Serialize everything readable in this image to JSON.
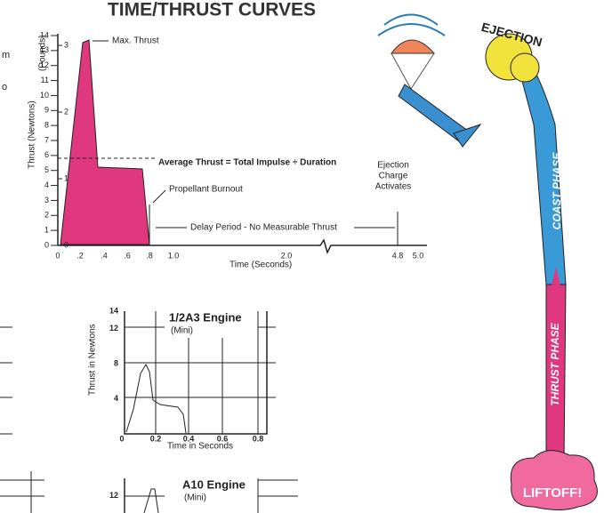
{
  "header": {
    "title": "TIME/THRUST CURVES"
  },
  "left_fragments": [
    "m",
    "o"
  ],
  "main_chart": {
    "y_label": "Thrust (Newtons)",
    "y2_label": "(Pounds)",
    "newton_ticks": [
      0,
      1,
      2,
      3,
      4,
      5,
      6,
      7,
      8,
      9,
      10,
      11,
      12,
      13,
      14
    ],
    "pound_ticks": [
      0,
      1,
      2,
      3
    ],
    "x_ticks": [
      "0",
      ".2",
      ".4",
      ".6",
      ".8",
      "1.0",
      "2.0",
      "4.8",
      "5.0"
    ],
    "x_label": "Time (Seconds)",
    "annotations": {
      "max_thrust": "Max. Thrust",
      "average": "Average Thrust = Total Impulse ÷ Duration",
      "burnout": "Propellant Burnout",
      "delay": "Delay Period - No Measurable Thrust",
      "ejection": [
        "Ejection",
        "Charge",
        "Activates"
      ]
    }
  },
  "engine_charts": [
    {
      "title": "1/2A3 Engine",
      "subtitle": "(Mini)",
      "y_label": "Thrust in Newtons",
      "y_ticks": [
        14,
        12,
        8,
        4
      ],
      "x_ticks": [
        "0",
        "0.2",
        "0.4",
        "0.6",
        "0.8"
      ],
      "x_label": "Time in Seconds"
    },
    {
      "title": "A10 Engine",
      "subtitle": "(Mini)",
      "y_ticks": [
        12
      ]
    }
  ],
  "flight": {
    "ejection": "EJECTION",
    "coast": "COAST PHASE",
    "thrust": "THRUST PHASE",
    "liftoff": "LIFTOFF!"
  }
}
